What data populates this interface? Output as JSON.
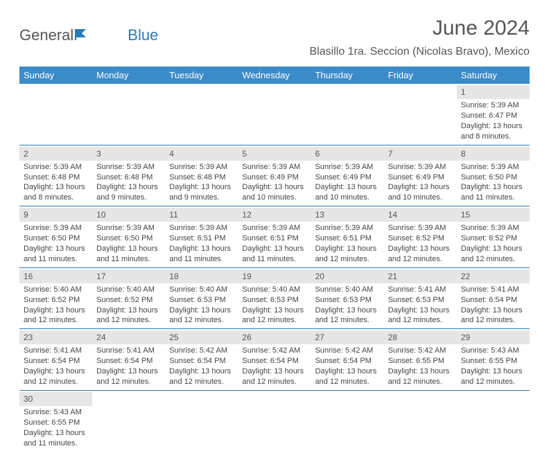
{
  "brand": {
    "part1": "General",
    "part2": "Blue"
  },
  "title": "June 2024",
  "location": "Blasillo 1ra. Seccion (Nicolas Bravo), Mexico",
  "colors": {
    "header_bg": "#3b8bc9",
    "header_text": "#ffffff",
    "accent": "#2a7ab9",
    "daynum_bg": "#e6e6e6",
    "text": "#444444",
    "border": "#2a7ab9"
  },
  "day_headers": [
    "Sunday",
    "Monday",
    "Tuesday",
    "Wednesday",
    "Thursday",
    "Friday",
    "Saturday"
  ],
  "weeks": [
    [
      null,
      null,
      null,
      null,
      null,
      null,
      {
        "n": "1",
        "sr": "Sunrise: 5:39 AM",
        "ss": "Sunset: 6:47 PM",
        "d1": "Daylight: 13 hours",
        "d2": "and 8 minutes."
      }
    ],
    [
      {
        "n": "2",
        "sr": "Sunrise: 5:39 AM",
        "ss": "Sunset: 6:48 PM",
        "d1": "Daylight: 13 hours",
        "d2": "and 8 minutes."
      },
      {
        "n": "3",
        "sr": "Sunrise: 5:39 AM",
        "ss": "Sunset: 6:48 PM",
        "d1": "Daylight: 13 hours",
        "d2": "and 9 minutes."
      },
      {
        "n": "4",
        "sr": "Sunrise: 5:39 AM",
        "ss": "Sunset: 6:48 PM",
        "d1": "Daylight: 13 hours",
        "d2": "and 9 minutes."
      },
      {
        "n": "5",
        "sr": "Sunrise: 5:39 AM",
        "ss": "Sunset: 6:49 PM",
        "d1": "Daylight: 13 hours",
        "d2": "and 10 minutes."
      },
      {
        "n": "6",
        "sr": "Sunrise: 5:39 AM",
        "ss": "Sunset: 6:49 PM",
        "d1": "Daylight: 13 hours",
        "d2": "and 10 minutes."
      },
      {
        "n": "7",
        "sr": "Sunrise: 5:39 AM",
        "ss": "Sunset: 6:49 PM",
        "d1": "Daylight: 13 hours",
        "d2": "and 10 minutes."
      },
      {
        "n": "8",
        "sr": "Sunrise: 5:39 AM",
        "ss": "Sunset: 6:50 PM",
        "d1": "Daylight: 13 hours",
        "d2": "and 11 minutes."
      }
    ],
    [
      {
        "n": "9",
        "sr": "Sunrise: 5:39 AM",
        "ss": "Sunset: 6:50 PM",
        "d1": "Daylight: 13 hours",
        "d2": "and 11 minutes."
      },
      {
        "n": "10",
        "sr": "Sunrise: 5:39 AM",
        "ss": "Sunset: 6:50 PM",
        "d1": "Daylight: 13 hours",
        "d2": "and 11 minutes."
      },
      {
        "n": "11",
        "sr": "Sunrise: 5:39 AM",
        "ss": "Sunset: 6:51 PM",
        "d1": "Daylight: 13 hours",
        "d2": "and 11 minutes."
      },
      {
        "n": "12",
        "sr": "Sunrise: 5:39 AM",
        "ss": "Sunset: 6:51 PM",
        "d1": "Daylight: 13 hours",
        "d2": "and 11 minutes."
      },
      {
        "n": "13",
        "sr": "Sunrise: 5:39 AM",
        "ss": "Sunset: 6:51 PM",
        "d1": "Daylight: 13 hours",
        "d2": "and 12 minutes."
      },
      {
        "n": "14",
        "sr": "Sunrise: 5:39 AM",
        "ss": "Sunset: 6:52 PM",
        "d1": "Daylight: 13 hours",
        "d2": "and 12 minutes."
      },
      {
        "n": "15",
        "sr": "Sunrise: 5:39 AM",
        "ss": "Sunset: 6:52 PM",
        "d1": "Daylight: 13 hours",
        "d2": "and 12 minutes."
      }
    ],
    [
      {
        "n": "16",
        "sr": "Sunrise: 5:40 AM",
        "ss": "Sunset: 6:52 PM",
        "d1": "Daylight: 13 hours",
        "d2": "and 12 minutes."
      },
      {
        "n": "17",
        "sr": "Sunrise: 5:40 AM",
        "ss": "Sunset: 6:52 PM",
        "d1": "Daylight: 13 hours",
        "d2": "and 12 minutes."
      },
      {
        "n": "18",
        "sr": "Sunrise: 5:40 AM",
        "ss": "Sunset: 6:53 PM",
        "d1": "Daylight: 13 hours",
        "d2": "and 12 minutes."
      },
      {
        "n": "19",
        "sr": "Sunrise: 5:40 AM",
        "ss": "Sunset: 6:53 PM",
        "d1": "Daylight: 13 hours",
        "d2": "and 12 minutes."
      },
      {
        "n": "20",
        "sr": "Sunrise: 5:40 AM",
        "ss": "Sunset: 6:53 PM",
        "d1": "Daylight: 13 hours",
        "d2": "and 12 minutes."
      },
      {
        "n": "21",
        "sr": "Sunrise: 5:41 AM",
        "ss": "Sunset: 6:53 PM",
        "d1": "Daylight: 13 hours",
        "d2": "and 12 minutes."
      },
      {
        "n": "22",
        "sr": "Sunrise: 5:41 AM",
        "ss": "Sunset: 6:54 PM",
        "d1": "Daylight: 13 hours",
        "d2": "and 12 minutes."
      }
    ],
    [
      {
        "n": "23",
        "sr": "Sunrise: 5:41 AM",
        "ss": "Sunset: 6:54 PM",
        "d1": "Daylight: 13 hours",
        "d2": "and 12 minutes."
      },
      {
        "n": "24",
        "sr": "Sunrise: 5:41 AM",
        "ss": "Sunset: 6:54 PM",
        "d1": "Daylight: 13 hours",
        "d2": "and 12 minutes."
      },
      {
        "n": "25",
        "sr": "Sunrise: 5:42 AM",
        "ss": "Sunset: 6:54 PM",
        "d1": "Daylight: 13 hours",
        "d2": "and 12 minutes."
      },
      {
        "n": "26",
        "sr": "Sunrise: 5:42 AM",
        "ss": "Sunset: 6:54 PM",
        "d1": "Daylight: 13 hours",
        "d2": "and 12 minutes."
      },
      {
        "n": "27",
        "sr": "Sunrise: 5:42 AM",
        "ss": "Sunset: 6:54 PM",
        "d1": "Daylight: 13 hours",
        "d2": "and 12 minutes."
      },
      {
        "n": "28",
        "sr": "Sunrise: 5:42 AM",
        "ss": "Sunset: 6:55 PM",
        "d1": "Daylight: 13 hours",
        "d2": "and 12 minutes."
      },
      {
        "n": "29",
        "sr": "Sunrise: 5:43 AM",
        "ss": "Sunset: 6:55 PM",
        "d1": "Daylight: 13 hours",
        "d2": "and 12 minutes."
      }
    ],
    [
      {
        "n": "30",
        "sr": "Sunrise: 5:43 AM",
        "ss": "Sunset: 6:55 PM",
        "d1": "Daylight: 13 hours",
        "d2": "and 11 minutes."
      },
      null,
      null,
      null,
      null,
      null,
      null
    ]
  ]
}
